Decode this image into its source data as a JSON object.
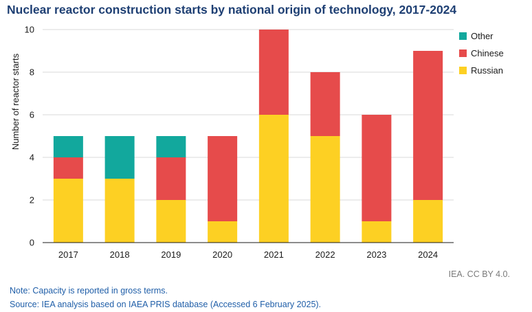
{
  "title": "Nuclear reactor construction starts by national origin of technology, 2017-2024",
  "note": "Note: Capacity is reported in gross terms.",
  "source": "Source: IEA analysis based on IAEA PRIS database (Accessed 6 February 2025).",
  "credit": "IEA. CC BY 4.0.",
  "chart_data": {
    "type": "bar",
    "stacked": true,
    "categories": [
      "2017",
      "2018",
      "2019",
      "2020",
      "2021",
      "2022",
      "2023",
      "2024"
    ],
    "series": [
      {
        "name": "Russian",
        "color": "#fdd023",
        "values": [
          3,
          3,
          2,
          1,
          6,
          5,
          1,
          2
        ]
      },
      {
        "name": "Chinese",
        "color": "#e64b4b",
        "values": [
          1,
          0,
          2,
          4,
          4,
          3,
          5,
          7
        ]
      },
      {
        "name": "Other",
        "color": "#12a89d",
        "values": [
          1,
          2,
          1,
          0,
          0,
          0,
          0,
          0
        ]
      }
    ],
    "legend_order": [
      "Other",
      "Chinese",
      "Russian"
    ],
    "legend_position": "right",
    "ylabel": "Number of reactor starts",
    "xlabel": "",
    "ylim": [
      0,
      10
    ],
    "yticks": [
      0,
      2,
      4,
      6,
      8,
      10
    ],
    "grid": true
  }
}
